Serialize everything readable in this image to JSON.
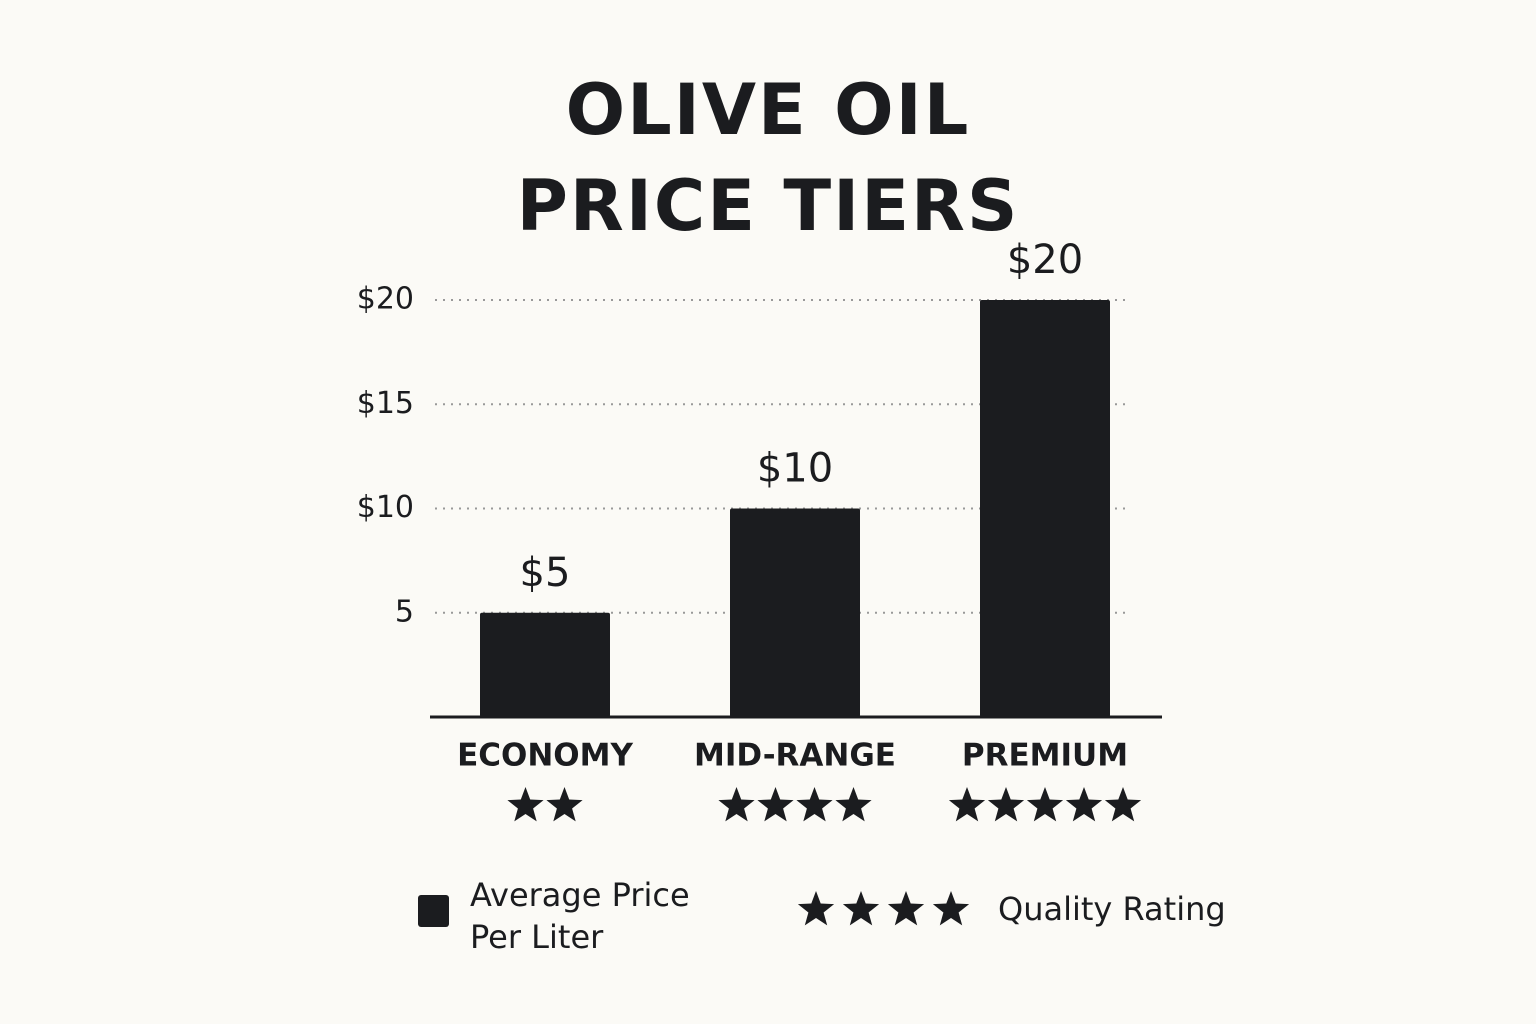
{
  "chart_data": {
    "type": "bar",
    "title": "OLIVE OIL PRICE TIERS",
    "categories": [
      "ECONOMY",
      "MID-RANGE",
      "PREMIUM"
    ],
    "values": [
      5,
      10,
      20
    ],
    "value_labels": [
      "$5",
      "$10",
      "$20"
    ],
    "ratings": [
      2,
      4,
      5
    ],
    "color": "#1b1c1f",
    "ylim": [
      0,
      20
    ],
    "yticks": [
      5,
      {
        "value": 10,
        "label": "$10"
      },
      {
        "value": 15,
        "label": "$15"
      },
      {
        "value": 20,
        "label": "$20"
      }
    ],
    "grid": true,
    "legend": {
      "price": "Average Price Per Liter",
      "rating": "Quality Rating"
    }
  }
}
